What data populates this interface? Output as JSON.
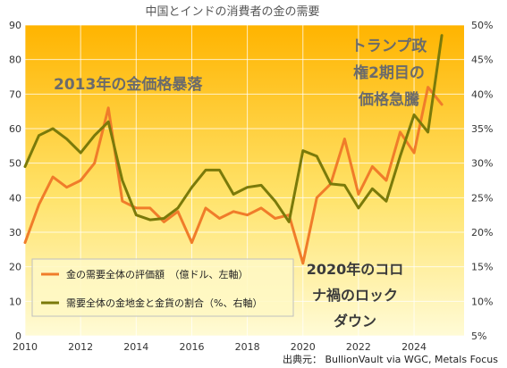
{
  "chart_data": {
    "type": "line",
    "title": "中国とインドの消費者の金の需要",
    "source": "出典元：  BullionVault via WGC, Metals Focus",
    "annotations": [
      {
        "lines": [
          "2013年の金価格暴落"
        ],
        "color": "#6b6b6b"
      },
      {
        "lines": [
          "トランプ政",
          "権2期目の",
          "価格急騰"
        ],
        "color": "#6b6b6b"
      },
      {
        "lines": [
          "2020年のコロ",
          "ナ禍のロック",
          "ダウン"
        ],
        "color": "#3a3a3a"
      }
    ],
    "x_ticks": [
      "2010",
      "2012",
      "2014",
      "2016",
      "2018",
      "2020",
      "2022",
      "2024"
    ],
    "y_left": {
      "min": 0,
      "max": 90,
      "ticks": [
        "0",
        "10",
        "20",
        "30",
        "40",
        "50",
        "60",
        "70",
        "80",
        "90"
      ]
    },
    "y_right": {
      "min": 5,
      "max": 50,
      "ticks": [
        "5%",
        "10%",
        "15%",
        "20%",
        "25%",
        "30%",
        "35%",
        "40%",
        "45%",
        "50%"
      ]
    },
    "series": [
      {
        "name": "金の需要全体の評価額　（億ドル、左軸）",
        "axis": "left",
        "color": "#f07c2a",
        "x": [
          2010,
          2010.5,
          2011,
          2011.5,
          2012,
          2012.5,
          2013,
          2013.5,
          2014,
          2014.5,
          2015,
          2015.5,
          2016,
          2016.5,
          2017,
          2017.5,
          2018,
          2018.5,
          2019,
          2019.5,
          2020,
          2020.5,
          2021,
          2021.5,
          2022,
          2022.5,
          2023,
          2023.5,
          2024,
          2024.5,
          2025
        ],
        "values": [
          27,
          38,
          46,
          43,
          45,
          50,
          66,
          39,
          37,
          37,
          33,
          36,
          27,
          37,
          34,
          36,
          35,
          37,
          34,
          35,
          21,
          40,
          44,
          57,
          41,
          49,
          45,
          59,
          53,
          72,
          67
        ]
      },
      {
        "name": "需要全体の金地金と金貨の割合（%、右軸）",
        "axis": "right",
        "color": "#7a7a0a",
        "x": [
          2010,
          2010.5,
          2011,
          2011.5,
          2012,
          2012.5,
          2013,
          2013.5,
          2014,
          2014.5,
          2015,
          2015.5,
          2016,
          2016.5,
          2017,
          2017.5,
          2018,
          2018.5,
          2019,
          2019.5,
          2020,
          2020.5,
          2021,
          2021.5,
          2022,
          2022.5,
          2023,
          2023.5,
          2024,
          2024.5,
          2025
        ],
        "values": [
          29.5,
          34,
          35,
          33.5,
          31.5,
          34,
          36,
          27.5,
          22.5,
          21.8,
          22,
          23.5,
          26.5,
          29,
          29,
          25.5,
          26.5,
          26.8,
          24.5,
          21.5,
          31.8,
          31,
          27,
          26.8,
          23.5,
          26.3,
          24.5,
          31,
          37,
          34.5,
          48.5
        ]
      }
    ],
    "grid": true,
    "legend_position": "bottom-left"
  }
}
